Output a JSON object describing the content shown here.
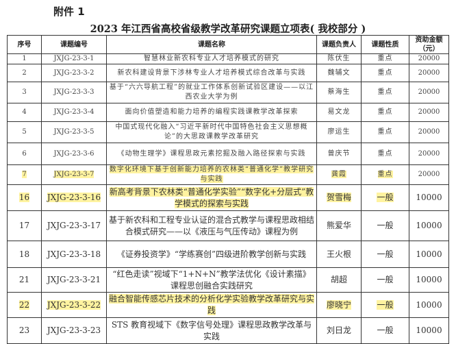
{
  "attachment": "附件 1",
  "title": "2023 年江西省高校省级教学改革研究课题立项表( 我校部分 )",
  "headers": [
    "序号",
    "课题编号",
    "课题名称",
    "课题负责人",
    "课题性质",
    "资助金额（元）"
  ],
  "highlight_color": "#fff3a0",
  "rows": [
    {
      "no": "1",
      "code": "JXJG-23-3-1",
      "name": "智慧林业新农科专业人才培养模式的研究",
      "leader": "陈伏生",
      "type": "重点",
      "amount": "20000"
    },
    {
      "no": "2",
      "code": "JXJG-23-3-2",
      "name": "新农科建设背景下涉林专业人才培养模式综合改革与实践",
      "leader": "魏辅文",
      "type": "重点",
      "amount": "20000"
    },
    {
      "no": "3",
      "code": "JXJG-23-3-3",
      "name": "基于“六六导航工程”的就业工作体系创新试验区建设——以江西农业大学为例",
      "leader": "蔡海生",
      "type": "重点",
      "amount": "20000"
    },
    {
      "no": "4",
      "code": "JXJG-23-3-4",
      "name": "面向价值塑造和能力培养的编程实践课教学改革探索",
      "leader": "易文龙",
      "type": "重点",
      "amount": "20000"
    },
    {
      "no": "5",
      "code": "JXJG-23-3-5",
      "name": "中国式现代化融入“习近平新时代中国特色社会主义思想概论”的大思政课教学改革研究",
      "leader": "廖运生",
      "type": "重点",
      "amount": "20000"
    },
    {
      "no": "6",
      "code": "JXJG-23-3-6",
      "name": "《动物生理学》课程思政元素挖掘及融入路径探索与实践",
      "leader": "曾庆节",
      "type": "重点",
      "amount": "20000"
    },
    {
      "no": "7",
      "code": "JXJG-23-3-7",
      "name": "数字化环境下基于创新能力培养的农林类“普通化学”教学研究与实践",
      "leader": "龚霞",
      "type": "重点",
      "amount": "20000",
      "highlight": true
    },
    {
      "no": "16",
      "code": "JXJG-23-3-16",
      "name": "新高考背景下农林类“普通化学实验”“数字化+分层式”教学模式的探索与实践",
      "leader": "贺雪梅",
      "type": "一般",
      "amount": "10000",
      "highlight": true
    },
    {
      "no": "17",
      "code": "JXJG-23-3-17",
      "name": "基于新农科和工程专业认证的混合式教学与课程思政相结合模式研究——以《液压与气压传动》课程为例",
      "leader": "熊爱华",
      "type": "一般",
      "amount": "10000"
    },
    {
      "no": "18",
      "code": "JXJG-23-3-18",
      "name": "《证券投资学》“学练赛创”四级进阶教学创新与实践",
      "leader": "王火根",
      "type": "一般",
      "amount": "10000"
    },
    {
      "no": "21",
      "code": "JXJG-23-3-21",
      "name": "“红色走读”视域下“1+N+N”教学法优化《设计素描》课程思创融合实践研究",
      "leader": "胡超",
      "type": "一般",
      "amount": "10000"
    },
    {
      "no": "22",
      "code": "JXJG-23-3-22",
      "name": "融合智能传感芯片技术的分析化学实验教学改革研究与实践",
      "leader": "廖晓宁",
      "type": "一般",
      "amount": "10000",
      "highlight": true
    },
    {
      "no": "23",
      "code": "JXJG-23-3-23",
      "name": "STS 教育视域下《数字信号处理》课程思政教学改革与实践",
      "leader": "刘日龙",
      "type": "一般",
      "amount": "10000"
    }
  ]
}
